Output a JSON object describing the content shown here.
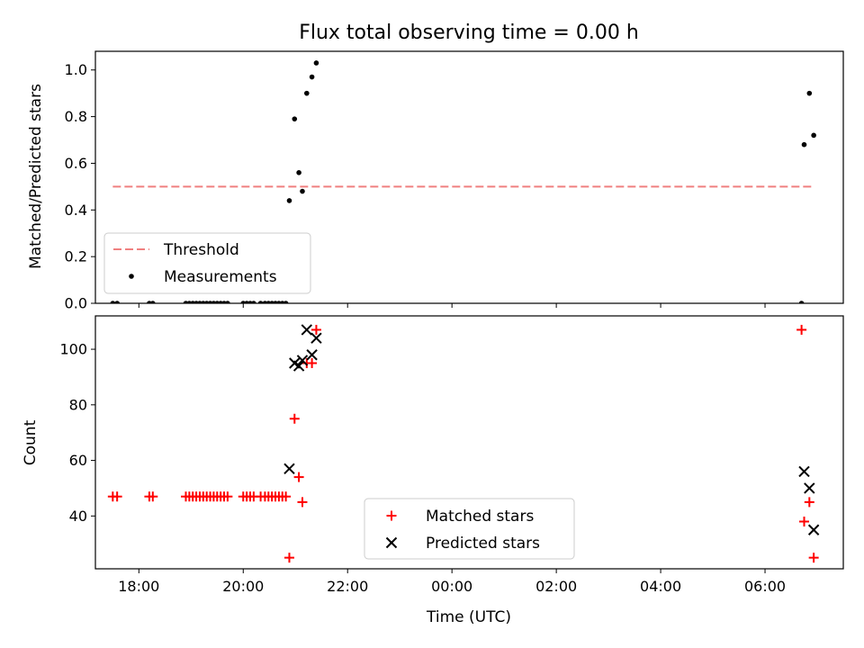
{
  "chart_data": [
    {
      "type": "scatter",
      "title": "Flux total observing time = 0.00 h",
      "xlabel": "",
      "ylabel": "Matched/Predicted stars",
      "xlim": [
        "17:10",
        "07:30"
      ],
      "ylim": [
        0,
        1.08
      ],
      "yticks": [
        "0.0",
        "0.2",
        "0.4",
        "0.6",
        "0.8",
        "1.0"
      ],
      "legend": {
        "position": "lower-left",
        "entries": [
          "Threshold",
          "Measurements"
        ]
      },
      "threshold": {
        "name": "Threshold",
        "y": 0.5,
        "x_start": "17:30",
        "x_end": "06:55",
        "color": "#f08080",
        "style": "dashed"
      },
      "series": [
        {
          "name": "Measurements",
          "color": "#000000",
          "marker": "dot",
          "points": [
            [
              "17:30",
              0
            ],
            [
              "17:35",
              0
            ],
            [
              "18:12",
              0
            ],
            [
              "18:16",
              0
            ],
            [
              "18:54",
              0
            ],
            [
              "18:58",
              0
            ],
            [
              "19:02",
              0
            ],
            [
              "19:06",
              0
            ],
            [
              "19:10",
              0
            ],
            [
              "19:14",
              0
            ],
            [
              "19:18",
              0
            ],
            [
              "19:22",
              0
            ],
            [
              "19:26",
              0
            ],
            [
              "19:30",
              0
            ],
            [
              "19:34",
              0
            ],
            [
              "19:38",
              0
            ],
            [
              "19:42",
              0
            ],
            [
              "20:00",
              0
            ],
            [
              "20:04",
              0
            ],
            [
              "20:08",
              0
            ],
            [
              "20:12",
              0
            ],
            [
              "20:20",
              0
            ],
            [
              "20:25",
              0
            ],
            [
              "20:29",
              0
            ],
            [
              "20:33",
              0
            ],
            [
              "20:37",
              0
            ],
            [
              "20:41",
              0
            ],
            [
              "20:45",
              0
            ],
            [
              "20:49",
              0
            ],
            [
              "20:53",
              0.44
            ],
            [
              "20:59",
              0.79
            ],
            [
              "21:04",
              0.56
            ],
            [
              "21:08",
              0.48
            ],
            [
              "21:13",
              0.9
            ],
            [
              "21:19",
              0.97
            ],
            [
              "21:24",
              1.03
            ],
            [
              "06:42",
              0
            ],
            [
              "06:45",
              0.68
            ],
            [
              "06:51",
              0.9
            ],
            [
              "06:56",
              0.72
            ]
          ]
        }
      ]
    },
    {
      "type": "scatter",
      "title": "",
      "xlabel": "Time (UTC)",
      "ylabel": "Count",
      "xlim": [
        "17:10",
        "07:30"
      ],
      "ylim": [
        21,
        112
      ],
      "xticks": [
        "18:00",
        "20:00",
        "22:00",
        "00:00",
        "02:00",
        "04:00",
        "06:00"
      ],
      "yticks": [
        "40",
        "60",
        "80",
        "100"
      ],
      "legend": {
        "position": "lower-center",
        "entries": [
          "Matched stars",
          "Predicted stars"
        ]
      },
      "series": [
        {
          "name": "Matched stars",
          "color": "#ff0000",
          "marker": "plus",
          "points": [
            [
              "17:30",
              47
            ],
            [
              "17:35",
              47
            ],
            [
              "18:12",
              47
            ],
            [
              "18:16",
              47
            ],
            [
              "18:54",
              47
            ],
            [
              "18:58",
              47
            ],
            [
              "19:02",
              47
            ],
            [
              "19:06",
              47
            ],
            [
              "19:10",
              47
            ],
            [
              "19:14",
              47
            ],
            [
              "19:18",
              47
            ],
            [
              "19:22",
              47
            ],
            [
              "19:26",
              47
            ],
            [
              "19:30",
              47
            ],
            [
              "19:34",
              47
            ],
            [
              "19:38",
              47
            ],
            [
              "19:42",
              47
            ],
            [
              "20:00",
              47
            ],
            [
              "20:04",
              47
            ],
            [
              "20:08",
              47
            ],
            [
              "20:12",
              47
            ],
            [
              "20:20",
              47
            ],
            [
              "20:25",
              47
            ],
            [
              "20:29",
              47
            ],
            [
              "20:33",
              47
            ],
            [
              "20:37",
              47
            ],
            [
              "20:41",
              47
            ],
            [
              "20:45",
              47
            ],
            [
              "20:49",
              47
            ],
            [
              "20:53",
              25
            ],
            [
              "20:59",
              75
            ],
            [
              "21:04",
              54
            ],
            [
              "21:08",
              45
            ],
            [
              "21:13",
              95
            ],
            [
              "21:19",
              95
            ],
            [
              "21:24",
              107
            ],
            [
              "06:42",
              107
            ],
            [
              "06:45",
              38
            ],
            [
              "06:51",
              45
            ],
            [
              "06:56",
              25
            ]
          ]
        },
        {
          "name": "Predicted stars",
          "color": "#000000",
          "marker": "x",
          "points": [
            [
              "20:53",
              57
            ],
            [
              "20:59",
              95
            ],
            [
              "21:04",
              94
            ],
            [
              "21:08",
              96
            ],
            [
              "21:13",
              107
            ],
            [
              "21:19",
              98
            ],
            [
              "21:24",
              104
            ],
            [
              "06:45",
              56
            ],
            [
              "06:51",
              50
            ],
            [
              "06:56",
              35
            ]
          ]
        }
      ]
    }
  ]
}
